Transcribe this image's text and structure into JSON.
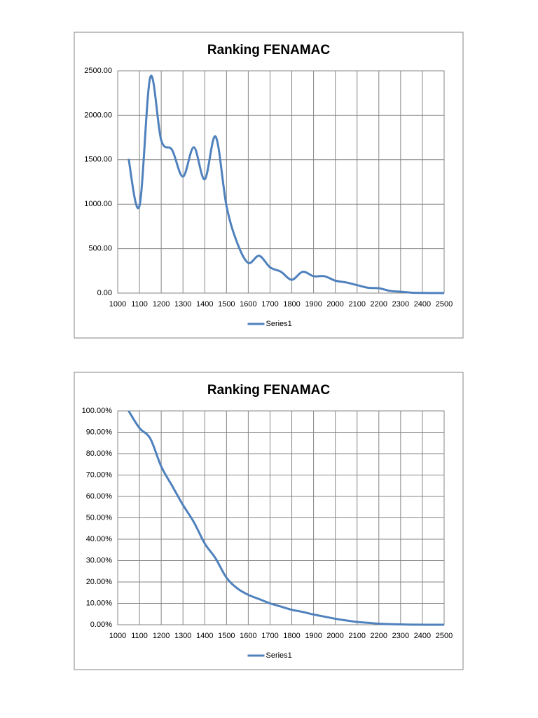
{
  "chart_data": [
    {
      "type": "line",
      "title": "Ranking FENAMAC",
      "x": [
        1050,
        1100,
        1150,
        1200,
        1250,
        1300,
        1350,
        1400,
        1450,
        1500,
        1550,
        1600,
        1650,
        1700,
        1750,
        1800,
        1850,
        1900,
        1950,
        2000,
        2050,
        2100,
        2150,
        2200,
        2250,
        2300,
        2350,
        2400,
        2450,
        2500
      ],
      "series": [
        {
          "name": "Series1",
          "color": "#4f81bd",
          "values": [
            1510,
            980,
            2430,
            1720,
            1610,
            1310,
            1640,
            1280,
            1760,
            980,
            560,
            340,
            420,
            290,
            240,
            150,
            240,
            190,
            190,
            140,
            120,
            90,
            60,
            55,
            25,
            15,
            5,
            2,
            1,
            0
          ]
        }
      ],
      "xlim": [
        1000,
        2500
      ],
      "xticks": [
        1000,
        1100,
        1200,
        1300,
        1400,
        1500,
        1600,
        1700,
        1800,
        1900,
        2000,
        2100,
        2200,
        2300,
        2400,
        2500
      ],
      "ylim": [
        0,
        2500
      ],
      "yticks": [
        {
          "value": 0,
          "label": "0.00"
        },
        {
          "value": 500,
          "label": "500.00"
        },
        {
          "value": 1000,
          "label": "1000.00"
        },
        {
          "value": 1500,
          "label": "1500.00"
        },
        {
          "value": 2000,
          "label": "2000.00"
        },
        {
          "value": 2500,
          "label": "2500.00"
        }
      ],
      "grid": true,
      "legend": "bottom"
    },
    {
      "type": "line",
      "title": "Ranking FENAMAC",
      "x": [
        1050,
        1100,
        1150,
        1200,
        1250,
        1300,
        1350,
        1400,
        1450,
        1500,
        1550,
        1600,
        1650,
        1700,
        1750,
        1800,
        1850,
        1900,
        1950,
        2000,
        2050,
        2100,
        2150,
        2200,
        2250,
        2300,
        2350,
        2400,
        2450,
        2500
      ],
      "series": [
        {
          "name": "Series1",
          "color": "#4f81bd",
          "values": [
            100,
            92,
            87,
            74,
            65,
            56,
            48,
            38,
            31,
            22,
            17,
            14,
            12,
            10,
            8.5,
            7,
            6,
            4.8,
            3.8,
            2.8,
            2,
            1.3,
            0.9,
            0.5,
            0.3,
            0.15,
            0.05,
            0.02,
            0.01,
            0
          ]
        }
      ],
      "xlim": [
        1000,
        2500
      ],
      "xticks": [
        1000,
        1100,
        1200,
        1300,
        1400,
        1500,
        1600,
        1700,
        1800,
        1900,
        2000,
        2100,
        2200,
        2300,
        2400,
        2500
      ],
      "ylim": [
        0,
        100
      ],
      "yticks": [
        {
          "value": 0,
          "label": "0.00%"
        },
        {
          "value": 10,
          "label": "10.00%"
        },
        {
          "value": 20,
          "label": "20.00%"
        },
        {
          "value": 30,
          "label": "30.00%"
        },
        {
          "value": 40,
          "label": "40.00%"
        },
        {
          "value": 50,
          "label": "50.00%"
        },
        {
          "value": 60,
          "label": "60.00%"
        },
        {
          "value": 70,
          "label": "70.00%"
        },
        {
          "value": 80,
          "label": "80.00%"
        },
        {
          "value": 90,
          "label": "90.00%"
        },
        {
          "value": 100,
          "label": "100.00%"
        }
      ],
      "grid": true,
      "legend": "bottom"
    }
  ]
}
